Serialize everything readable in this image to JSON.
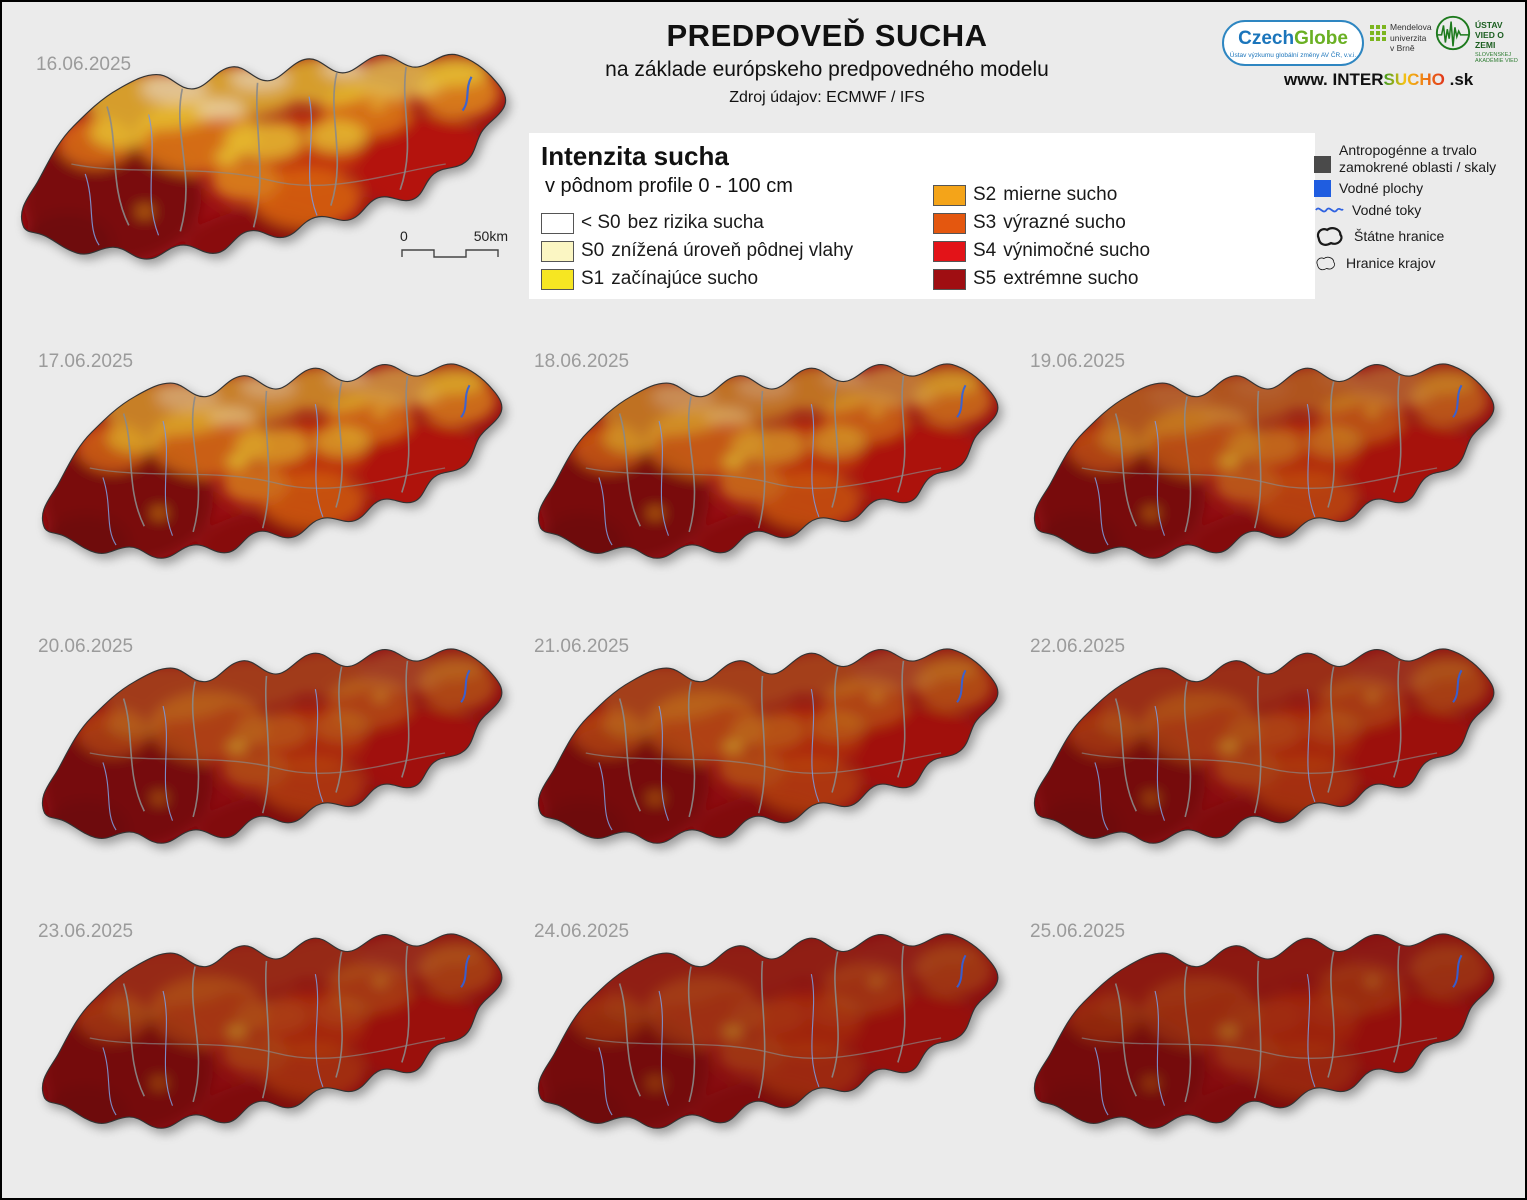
{
  "header": {
    "title": "PREDPOVEĎ SUCHA",
    "subtitle": "na základe európskeho predpovedného modelu",
    "source": "Zdroj údajov: ECMWF / IFS"
  },
  "branding": {
    "czechglobe_czech": "Czech",
    "czechglobe_globe": "Globe",
    "czechglobe_sub": "Ústav výzkumu globální změny AV ČR, v.v.i.",
    "mendel": "Mendelova univerzita v Brně",
    "uvz_title": "ÚSTAV VIED O ZEMI",
    "uvz_sub": "SLOVENSKEJ AKADÉMIE VIED",
    "website_www": "www. ",
    "website_inter": "INTER",
    "website_sucho": "SUCHO",
    "website_sk": " .sk"
  },
  "legend": {
    "title": "Intenzita sucha",
    "subtitle": "v pôdnom profile 0 - 100 cm",
    "classes": [
      {
        "code": "< S0",
        "label": "bez rizika sucha",
        "color": "#ffffff"
      },
      {
        "code": "S0",
        "label": "znížená úroveň pôdnej vlahy",
        "color": "#fbf6c3"
      },
      {
        "code": "S1",
        "label": "začínajúce sucho",
        "color": "#f6e622"
      },
      {
        "code": "S2",
        "label": "mierne sucho",
        "color": "#f4a419"
      },
      {
        "code": "S3",
        "label": "výrazné sucho",
        "color": "#e4570f"
      },
      {
        "code": "S4",
        "label": "výnimočné sucho",
        "color": "#e31318"
      },
      {
        "code": "S5",
        "label": "extrémne sucho",
        "color": "#9f0e12"
      }
    ]
  },
  "map_legend": {
    "items": [
      {
        "label": "Antropogénne a trvalo zamokrené oblasti / skaly",
        "symbol": "dark-square",
        "color": "#4a4a4a"
      },
      {
        "label": "Vodné plochy",
        "symbol": "blue-square",
        "color": "#1f5de0"
      },
      {
        "label": "Vodné toky",
        "symbol": "wavy-line",
        "color": "#2f62e0"
      },
      {
        "label": "Štátne hranice",
        "symbol": "thick-outline"
      },
      {
        "label": "Hranice krajov",
        "symbol": "thin-outline"
      }
    ]
  },
  "scalebar": {
    "zero": "0",
    "max": "50km"
  },
  "maps": [
    {
      "date": "16.06.2025",
      "severity": 0.22
    },
    {
      "date": "17.06.2025",
      "severity": 0.33
    },
    {
      "date": "18.06.2025",
      "severity": 0.38
    },
    {
      "date": "19.06.2025",
      "severity": 0.5
    },
    {
      "date": "20.06.2025",
      "severity": 0.62
    },
    {
      "date": "21.06.2025",
      "severity": 0.6
    },
    {
      "date": "22.06.2025",
      "severity": 0.7
    },
    {
      "date": "23.06.2025",
      "severity": 0.72
    },
    {
      "date": "24.06.2025",
      "severity": 0.8
    },
    {
      "date": "25.06.2025",
      "severity": 0.86
    }
  ]
}
